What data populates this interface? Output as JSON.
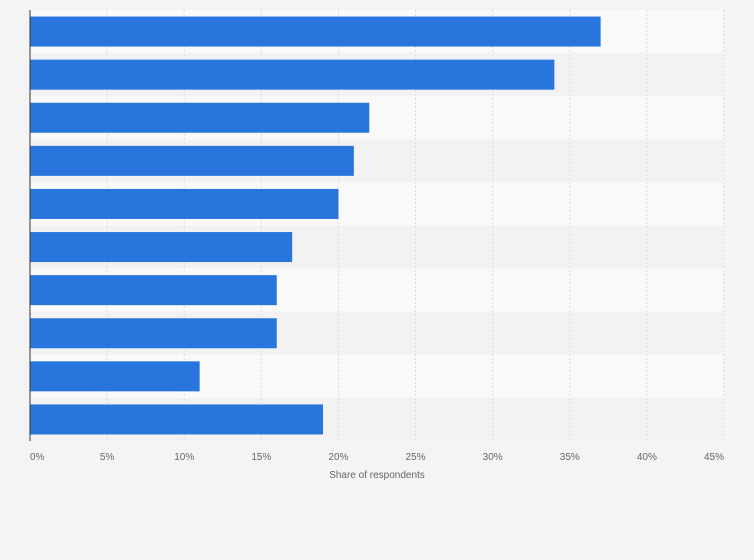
{
  "chart_data": {
    "type": "bar",
    "orientation": "horizontal",
    "categories": [
      "",
      "",
      "",
      "",
      "",
      "",
      "",
      "",
      "",
      ""
    ],
    "values": [
      37,
      34,
      22,
      21,
      20,
      17,
      16,
      16,
      11,
      19
    ],
    "xlabel": "Share of respondents",
    "ylabel": "",
    "xlim": [
      0,
      45
    ],
    "x_ticks": [
      0,
      5,
      10,
      15,
      20,
      25,
      30,
      35,
      40,
      45
    ],
    "x_tick_labels": [
      "0%",
      "5%",
      "10%",
      "15%",
      "20%",
      "25%",
      "30%",
      "35%",
      "40%",
      "45%"
    ],
    "grid": true,
    "legend": "none",
    "colors": {
      "bar": "#2876dd",
      "band_light": "#f9f9f9",
      "band_dark": "#f2f2f2",
      "grid": "#dcdcdc",
      "axis": "#333333",
      "background": "#f4f4f4"
    }
  }
}
